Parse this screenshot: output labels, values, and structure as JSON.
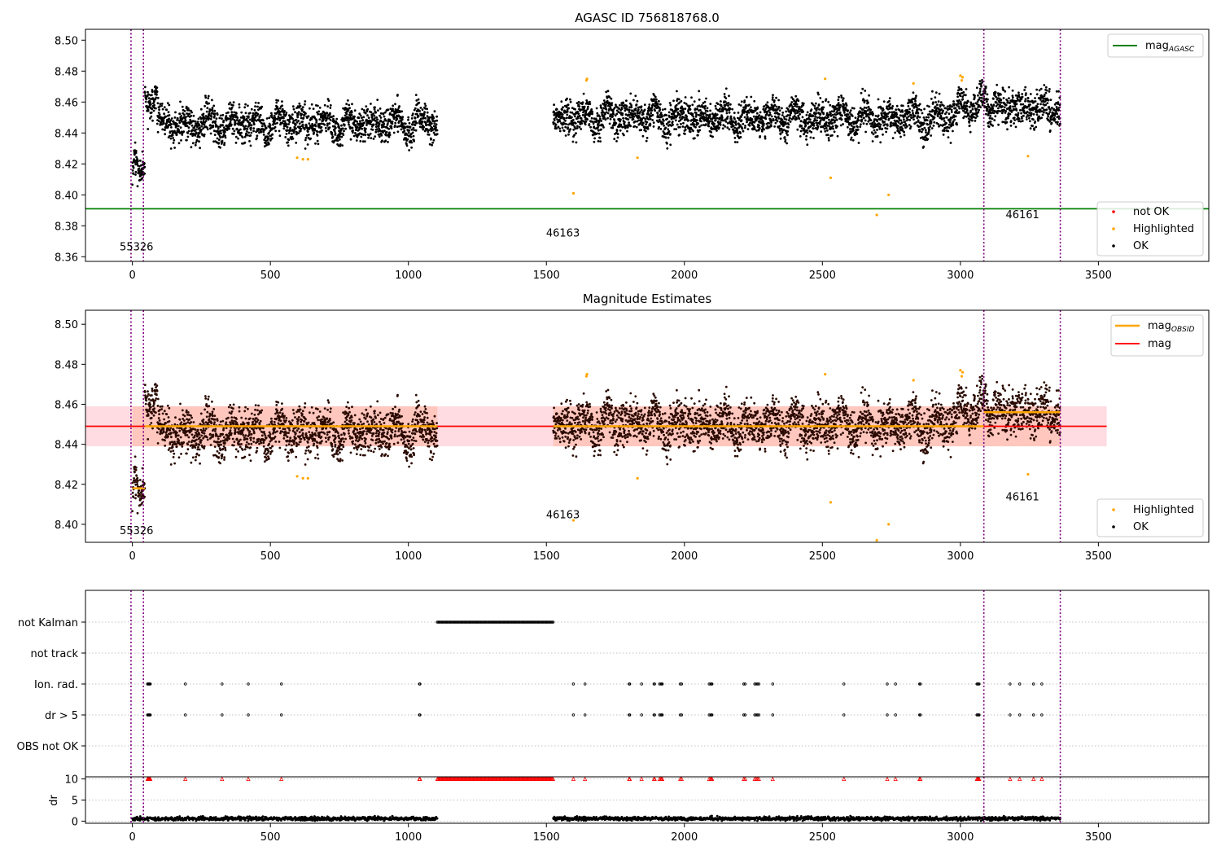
{
  "chart_data": [
    {
      "type": "scatter",
      "title": "AGASC ID 756818768.0",
      "xlabel": "",
      "ylabel": "",
      "xlim": [
        -170,
        3900
      ],
      "ylim": [
        8.357,
        8.507
      ],
      "xticks": [
        0,
        500,
        1000,
        1500,
        2000,
        2500,
        3000,
        3500
      ],
      "yticks": [
        8.36,
        8.38,
        8.4,
        8.42,
        8.44,
        8.46,
        8.48,
        8.5
      ],
      "vlines": [
        -5,
        40,
        3085,
        3362
      ],
      "hlines": [
        {
          "y": 8.391,
          "color": "#008000",
          "label": "mag_AGASC"
        }
      ],
      "obsid_labels": [
        {
          "text": "55326",
          "x": 15,
          "y": 8.364
        },
        {
          "text": "46163",
          "x": 1560,
          "y": 8.373
        },
        {
          "text": "46161",
          "x": 3225,
          "y": 8.385
        }
      ],
      "segments": [
        {
          "x0": 0,
          "x1": 45,
          "mean": 8.418,
          "amp": 0.006,
          "period": 40
        },
        {
          "x0": 45,
          "x1": 1105,
          "mean": 8.446,
          "amp": 0.007,
          "period": 85
        },
        {
          "x0": 1525,
          "x1": 3085,
          "mean": 8.45,
          "amp": 0.007,
          "period": 85
        },
        {
          "x0": 3085,
          "x1": 3362,
          "mean": 8.456,
          "amp": 0.005,
          "period": 80
        }
      ],
      "bumps": [
        {
          "x0": 45,
          "x1": 90,
          "add": 0.018
        },
        {
          "x0": 2990,
          "x1": 3100,
          "add": 0.008
        }
      ],
      "highlighted": [
        [
          597,
          8.424
        ],
        [
          618,
          8.423
        ],
        [
          636,
          8.423
        ],
        [
          1598,
          8.401
        ],
        [
          1645,
          8.474
        ],
        [
          1647,
          8.475
        ],
        [
          1830,
          8.424
        ],
        [
          2510,
          8.475
        ],
        [
          2530,
          8.411
        ],
        [
          2697,
          8.387
        ],
        [
          2740,
          8.4
        ],
        [
          2830,
          8.472
        ],
        [
          3000,
          8.477
        ],
        [
          3005,
          8.474
        ],
        [
          3008,
          8.476
        ],
        [
          3245,
          8.425
        ]
      ],
      "legends": [
        {
          "position": "upper right",
          "entries": [
            {
              "label": "mag",
              "sub": "AGASC",
              "color": "#008000",
              "kind": "line"
            }
          ]
        },
        {
          "position": "lower right",
          "entries": [
            {
              "label": "not OK",
              "color": "#ff0000",
              "kind": "dot"
            },
            {
              "label": "Highlighted",
              "color": "#ffa500",
              "kind": "dot"
            },
            {
              "label": "OK",
              "color": "#000000",
              "kind": "dot"
            }
          ]
        }
      ]
    },
    {
      "type": "scatter",
      "title": "Magnitude Estimates",
      "xlabel": "",
      "ylabel": "",
      "xlim": [
        -170,
        3900
      ],
      "ylim": [
        8.391,
        8.507
      ],
      "xticks": [
        0,
        500,
        1000,
        1500,
        2000,
        2500,
        3000,
        3500
      ],
      "yticks": [
        8.4,
        8.42,
        8.44,
        8.46,
        8.48,
        8.5
      ],
      "vlines": [
        -5,
        40,
        3085,
        3362
      ],
      "mag_line": {
        "y": 8.449,
        "x0": -170,
        "x1": 3530,
        "band": [
          8.439,
          8.459
        ],
        "color": "#ff0000"
      },
      "obsid_mag": [
        {
          "x0": 0,
          "x1": 45,
          "y": 8.418
        },
        {
          "x0": 45,
          "x1": 1105,
          "y": 8.449
        },
        {
          "x0": 1525,
          "x1": 3085,
          "y": 8.449
        },
        {
          "x0": 3085,
          "x1": 3362,
          "y": 8.456
        }
      ],
      "obsid_labels": [
        {
          "text": "55326",
          "x": 15,
          "y": 8.395
        },
        {
          "text": "46163",
          "x": 1560,
          "y": 8.403
        },
        {
          "text": "46161",
          "x": 3225,
          "y": 8.412
        }
      ],
      "highlighted": [
        [
          597,
          8.424
        ],
        [
          618,
          8.423
        ],
        [
          636,
          8.423
        ],
        [
          1598,
          8.402
        ],
        [
          1645,
          8.474
        ],
        [
          1647,
          8.475
        ],
        [
          1830,
          8.423
        ],
        [
          2510,
          8.475
        ],
        [
          2530,
          8.411
        ],
        [
          2697,
          8.392
        ],
        [
          2740,
          8.4
        ],
        [
          2830,
          8.472
        ],
        [
          3000,
          8.477
        ],
        [
          3005,
          8.474
        ],
        [
          3008,
          8.476
        ],
        [
          3245,
          8.425
        ]
      ],
      "legends": [
        {
          "position": "upper right",
          "entries": [
            {
              "label": "mag",
              "sub": "OBSID",
              "color": "#ffa500",
              "kind": "line"
            },
            {
              "label": "mag",
              "sub": "",
              "color": "#ff0000",
              "kind": "line"
            }
          ]
        },
        {
          "position": "lower right",
          "entries": [
            {
              "label": "Highlighted",
              "color": "#ffa500",
              "kind": "dot"
            },
            {
              "label": "OK",
              "color": "#000000",
              "kind": "dot"
            }
          ]
        }
      ]
    },
    {
      "type": "scatter",
      "title": "",
      "categories": [
        "not Kalman",
        "not track",
        "Ion. rad.",
        "dr > 5",
        "OBS not OK"
      ],
      "xlim": [
        -170,
        3900
      ],
      "vlines": [
        -5,
        40,
        3085,
        3362
      ],
      "not_kalman_range": [
        1105,
        1525
      ],
      "flag_times": [
        55,
        57,
        59,
        61,
        63,
        65,
        192,
        325,
        420,
        540,
        1040,
        1042,
        1598,
        1640,
        1800,
        1802,
        1845,
        1890,
        1892,
        1910,
        1915,
        1917,
        1920,
        1985,
        1990,
        2090,
        2095,
        2098,
        2100,
        2215,
        2220,
        2255,
        2260,
        2265,
        2270,
        2320,
        2578,
        2735,
        2765,
        2852,
        2855,
        3060,
        3063,
        3066,
        3068,
        3180,
        3215,
        3265,
        3295
      ]
    },
    {
      "type": "scatter",
      "title": "",
      "xlabel": "",
      "ylabel": "dr",
      "xlim": [
        -170,
        3900
      ],
      "ylim": [
        -0.5,
        10.5
      ],
      "xticks": [
        0,
        500,
        1000,
        1500,
        2000,
        2500,
        3000,
        3500
      ],
      "yticks": [
        0,
        5,
        10
      ],
      "vlines": [
        -5,
        40,
        3085,
        3362
      ],
      "dr_mean": 0.6,
      "clipped_y": 10
    }
  ]
}
